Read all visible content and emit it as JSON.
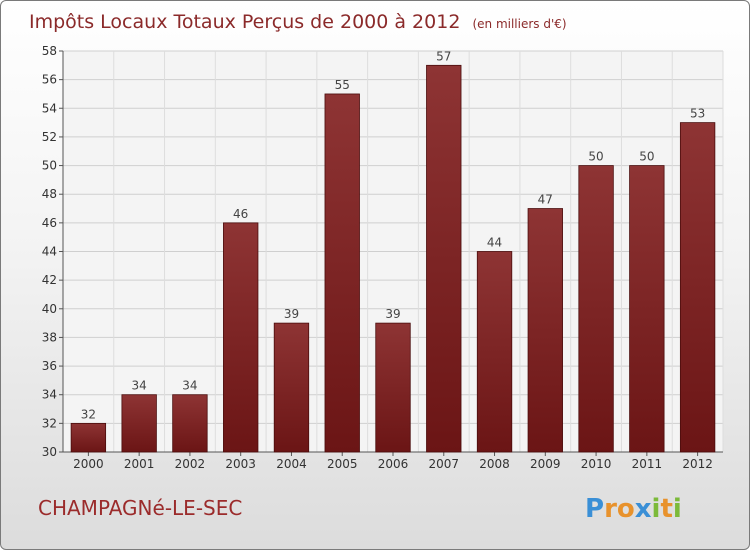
{
  "chart_data": {
    "type": "bar",
    "title": "Impôts Locaux Totaux Perçus de 2000 à 2012",
    "unit_label": "(en milliers d'€)",
    "categories": [
      "2000",
      "2001",
      "2002",
      "2003",
      "2004",
      "2005",
      "2006",
      "2007",
      "2008",
      "2009",
      "2010",
      "2011",
      "2012"
    ],
    "values": [
      32,
      34,
      34,
      46,
      39,
      55,
      39,
      57,
      44,
      47,
      50,
      50,
      53
    ],
    "ylim": [
      30,
      58
    ],
    "yticks": [
      30,
      32,
      34,
      36,
      38,
      40,
      42,
      44,
      46,
      48,
      50,
      52,
      54,
      56,
      58
    ],
    "xlabel": "",
    "ylabel": "",
    "bar_color": "#6b1515",
    "bar_color_light": "#8e3434"
  },
  "place_name": "CHAMPAGNé-LE-SEC",
  "logo": {
    "letters": [
      "P",
      "r",
      "o",
      "x",
      "i",
      "t",
      "i"
    ],
    "colors": [
      "#3a8fd6",
      "#e8922c",
      "#e8922c",
      "#3a8fd6",
      "#7cba3a",
      "#e8922c",
      "#7cba3a"
    ]
  }
}
